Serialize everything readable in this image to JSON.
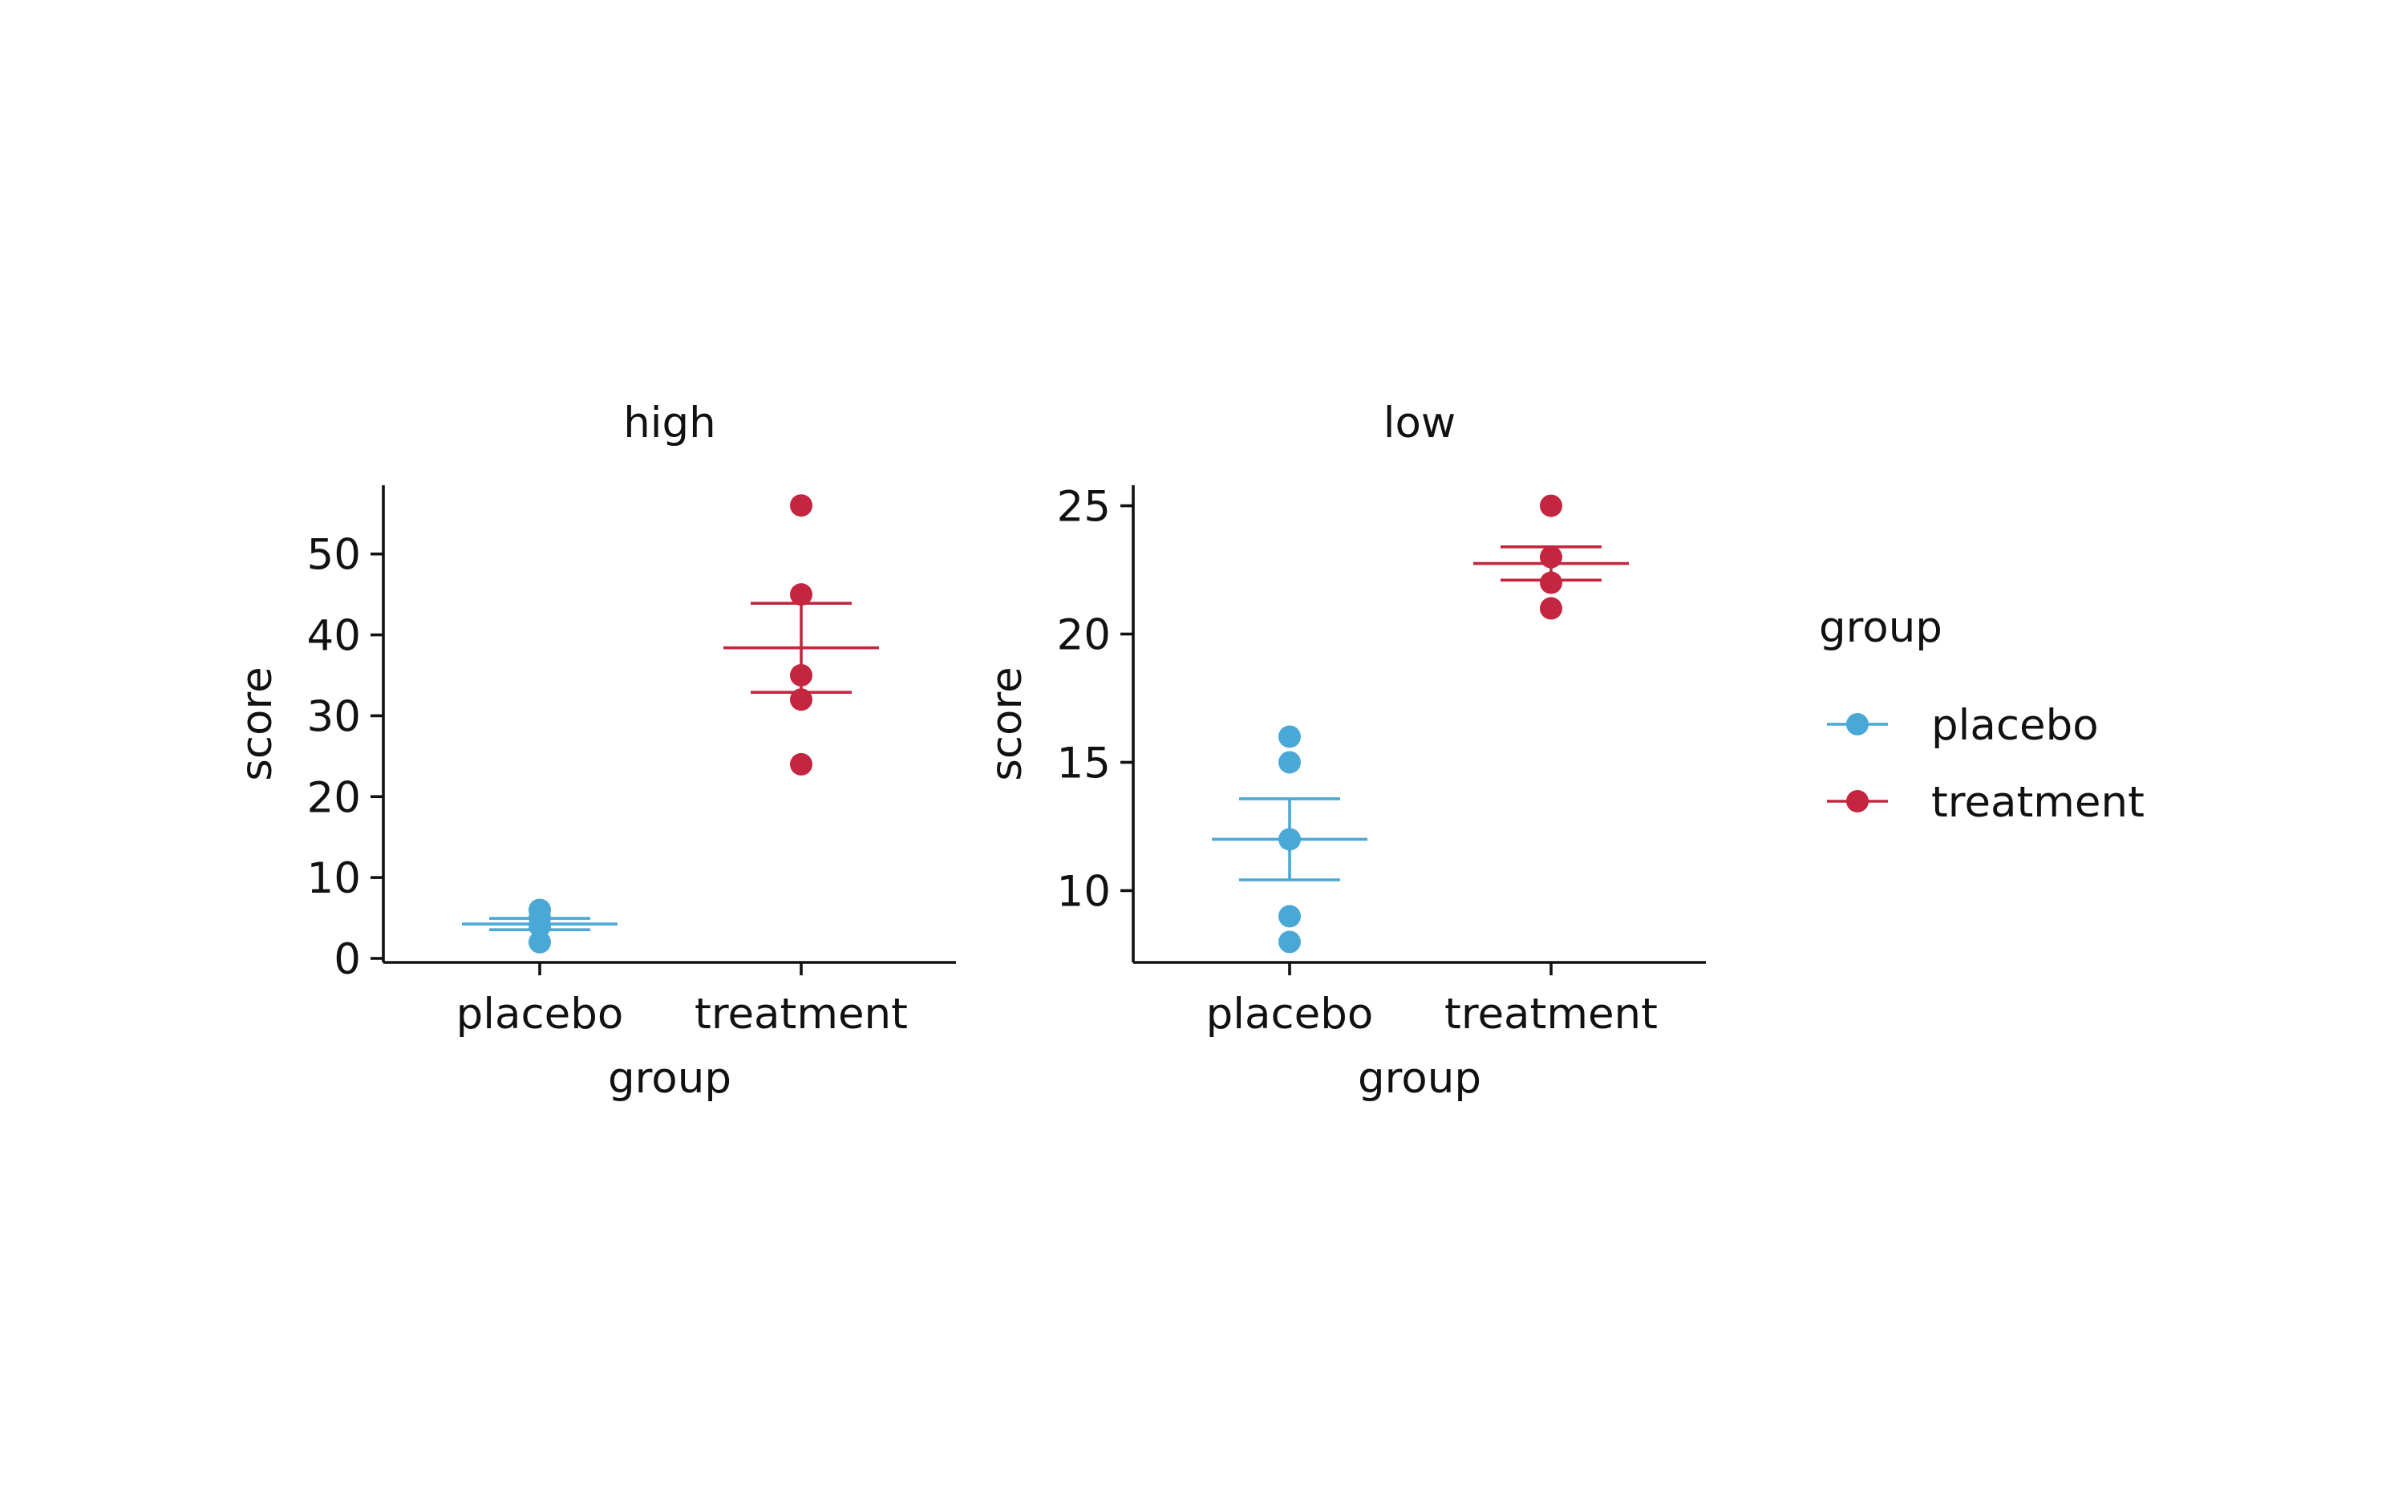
{
  "colors": {
    "placebo": "#4aa8d6",
    "treatment": "#c3263e",
    "axis": "#111111"
  },
  "legend": {
    "title": "group",
    "items": [
      {
        "label": "placebo",
        "color": "#4aa8d6"
      },
      {
        "label": "treatment",
        "color": "#c3263e"
      }
    ]
  },
  "chart_data": [
    {
      "type": "scatter",
      "facet": "high",
      "title": "high",
      "xlabel": "group",
      "ylabel": "score",
      "categories": [
        "placebo",
        "treatment"
      ],
      "ylim": [
        -0.5,
        58.5
      ],
      "yticks": [
        0,
        10,
        20,
        30,
        40,
        50
      ],
      "series": [
        {
          "name": "placebo",
          "category": "placebo",
          "points": [
            2,
            4,
            5,
            6
          ],
          "mean": 4.25,
          "se_low": 3.55,
          "se_high": 4.95
        },
        {
          "name": "treatment",
          "category": "treatment",
          "points": [
            24,
            32,
            35,
            45,
            56
          ],
          "mean": 38.4,
          "se_low": 32.9,
          "se_high": 43.9
        }
      ]
    },
    {
      "type": "scatter",
      "facet": "low",
      "title": "low",
      "xlabel": "group",
      "ylabel": "score",
      "categories": [
        "placebo",
        "treatment"
      ],
      "ylim": [
        7.2,
        25.8
      ],
      "yticks": [
        10,
        15,
        20,
        25
      ],
      "series": [
        {
          "name": "placebo",
          "category": "placebo",
          "points": [
            8,
            9,
            12,
            15,
            16
          ],
          "mean": 12,
          "se_low": 10.42,
          "se_high": 13.58
        },
        {
          "name": "treatment",
          "category": "treatment",
          "points": [
            21,
            22,
            23,
            25
          ],
          "mean": 22.75,
          "se_low": 22.1,
          "se_high": 23.4
        }
      ]
    }
  ]
}
